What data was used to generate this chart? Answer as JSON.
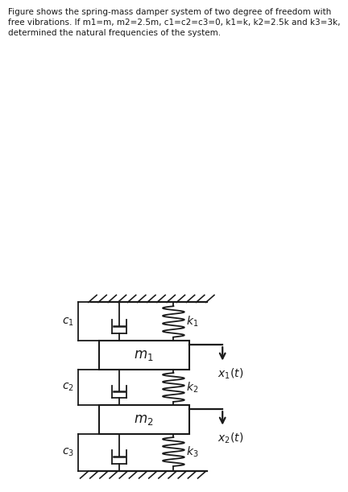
{
  "title_text": "Figure shows the spring-mass damper system of two degree of freedom with\nfree vibrations. If m1=m, m2=2.5m, c1=c2=c3=0, k1=k, k2=2.5k and k3=3k,\ndetermined the natural frequencies of the system.",
  "title_fontsize": 7.5,
  "bg_color": "#ffffff",
  "line_color": "#1a1a1a",
  "mass1_label": "$m_1$",
  "mass2_label": "$m_2$",
  "c1_label": "$c_1$",
  "c2_label": "$c_2$",
  "c3_label": "$c_3$",
  "k1_label": "$k_1$",
  "k2_label": "$k_2$",
  "k3_label": "$k_3$",
  "x1_label": "$x_1(t)$",
  "x2_label": "$x_2(t)$"
}
